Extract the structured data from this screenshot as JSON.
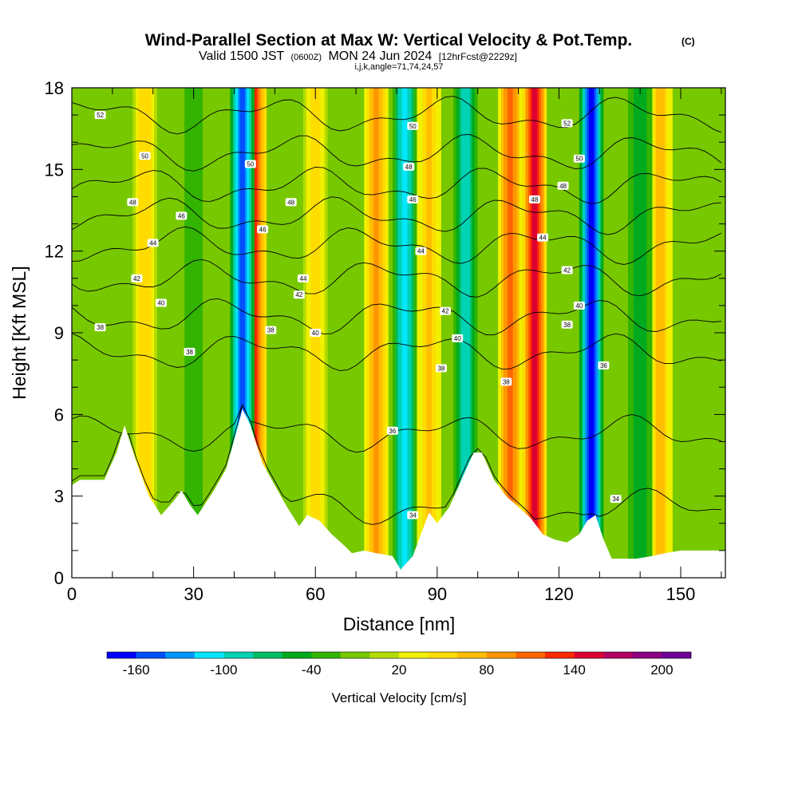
{
  "header": {
    "title": "Wind-Parallel Section at Max W: Vertical Velocity & Pot.Temp.",
    "copyright": "(C)",
    "valid_prefix": "Valid 1500 JST",
    "valid_utc": "(0600Z)",
    "valid_date": "MON 24 Jun 2024",
    "forecast": "[12hrFcst@2229z]",
    "indices": "i,j,k,angle=71,74,24,57"
  },
  "chart_data": {
    "type": "heatmap",
    "xlabel": "Distance [nm]",
    "ylabel": "Height [Kft MSL]",
    "xlim": [
      0,
      161
    ],
    "ylim": [
      0,
      18
    ],
    "x_ticks": [
      0,
      30,
      60,
      90,
      120,
      150
    ],
    "y_ticks": [
      0,
      3,
      6,
      9,
      12,
      15,
      18
    ],
    "colorbar": {
      "label": "Vertical Velocity [cm/s]",
      "tick_labels": [
        "-160",
        "-100",
        "-40",
        "20",
        "80",
        "140",
        "200"
      ],
      "bins": [
        -180,
        -160,
        -140,
        -120,
        -100,
        -80,
        -60,
        -40,
        -20,
        0,
        20,
        40,
        60,
        80,
        100,
        120,
        140,
        160,
        180,
        200,
        220
      ],
      "colors": [
        "#0000ff",
        "#0050ff",
        "#0096ff",
        "#00e6ff",
        "#00d2b4",
        "#00be64",
        "#00aa1e",
        "#32b400",
        "#78c800",
        "#b4dc00",
        "#f0f000",
        "#ffdc00",
        "#ffbe00",
        "#ff9600",
        "#ff6400",
        "#ff2800",
        "#dc0032",
        "#b40064",
        "#8c0082",
        "#6e0096"
      ]
    },
    "updraft_columns": [
      {
        "x": 18,
        "w": 55
      },
      {
        "x": 45,
        "w": 130
      },
      {
        "x": 60,
        "w": 50
      },
      {
        "x": 75,
        "w": 85
      },
      {
        "x": 88,
        "w": 60
      },
      {
        "x": 108,
        "w": 110
      },
      {
        "x": 114,
        "w": 150
      },
      {
        "x": 145,
        "w": 70
      }
    ],
    "downdraft_columns": [
      {
        "x": 30,
        "w": -40
      },
      {
        "x": 42,
        "w": -150
      },
      {
        "x": 82,
        "w": -110
      },
      {
        "x": 97,
        "w": -100
      },
      {
        "x": 128,
        "w": -170
      },
      {
        "x": 140,
        "w": -60
      }
    ],
    "terrain_kft": [
      [
        0,
        3.4
      ],
      [
        2,
        3.6
      ],
      [
        8,
        3.6
      ],
      [
        11,
        4.6
      ],
      [
        13,
        5.6
      ],
      [
        16,
        4.2
      ],
      [
        19,
        3.0
      ],
      [
        22,
        2.3
      ],
      [
        25,
        2.8
      ],
      [
        27,
        3.2
      ],
      [
        29,
        2.7
      ],
      [
        31,
        2.3
      ],
      [
        35,
        3.2
      ],
      [
        38,
        4.0
      ],
      [
        41,
        5.6
      ],
      [
        42,
        6.2
      ],
      [
        44,
        5.6
      ],
      [
        47,
        4.2
      ],
      [
        50,
        3.4
      ],
      [
        53,
        2.6
      ],
      [
        56,
        1.9
      ],
      [
        58,
        2.3
      ],
      [
        61,
        2.1
      ],
      [
        64,
        1.6
      ],
      [
        67,
        1.2
      ],
      [
        69,
        0.9
      ],
      [
        72,
        1.0
      ],
      [
        75,
        0.9
      ],
      [
        79,
        0.8
      ],
      [
        81,
        0.3
      ],
      [
        84,
        0.8
      ],
      [
        86,
        1.6
      ],
      [
        88,
        2.4
      ],
      [
        90,
        2.0
      ],
      [
        93,
        2.6
      ],
      [
        96,
        3.6
      ],
      [
        99,
        4.6
      ],
      [
        101,
        4.6
      ],
      [
        104,
        3.6
      ],
      [
        107,
        3.0
      ],
      [
        110,
        2.6
      ],
      [
        113,
        2.2
      ],
      [
        116,
        1.6
      ],
      [
        119,
        1.4
      ],
      [
        122,
        1.3
      ],
      [
        125,
        1.6
      ],
      [
        127,
        2.1
      ],
      [
        129,
        2.3
      ],
      [
        131,
        1.4
      ],
      [
        133,
        0.7
      ],
      [
        139,
        0.7
      ],
      [
        143,
        0.8
      ],
      [
        146,
        0.9
      ],
      [
        150,
        1.0
      ],
      [
        156,
        1.0
      ],
      [
        161,
        1.0
      ]
    ],
    "isentropes": [
      {
        "theta": "34",
        "z": 2.6
      },
      {
        "theta": "36",
        "z": 5.3
      },
      {
        "theta": "38",
        "z": 8.3
      },
      {
        "theta": "40",
        "z": 9.6
      },
      {
        "theta": "42",
        "z": 11.0
      },
      {
        "theta": "44",
        "z": 12.2
      },
      {
        "theta": "46",
        "z": 13.3
      },
      {
        "theta": "48",
        "z": 14.4
      },
      {
        "theta": "50",
        "z": 15.6
      },
      {
        "theta": "52",
        "z": 17.0
      }
    ],
    "contour_labels": [
      {
        "text": "52",
        "x": 7,
        "y": 17.0
      },
      {
        "text": "50",
        "x": 18,
        "y": 15.5
      },
      {
        "text": "48",
        "x": 15,
        "y": 13.8
      },
      {
        "text": "46",
        "x": 27,
        "y": 13.3
      },
      {
        "text": "44",
        "x": 20,
        "y": 12.3
      },
      {
        "text": "42",
        "x": 16,
        "y": 11.0
      },
      {
        "text": "40",
        "x": 22,
        "y": 10.1
      },
      {
        "text": "38",
        "x": 7,
        "y": 9.2
      },
      {
        "text": "38",
        "x": 29,
        "y": 8.3
      },
      {
        "text": "50",
        "x": 44,
        "y": 15.2
      },
      {
        "text": "48",
        "x": 54,
        "y": 13.8
      },
      {
        "text": "46",
        "x": 47,
        "y": 12.8
      },
      {
        "text": "44",
        "x": 57,
        "y": 11.0
      },
      {
        "text": "42",
        "x": 56,
        "y": 10.4
      },
      {
        "text": "38",
        "x": 49,
        "y": 9.1
      },
      {
        "text": "40",
        "x": 60,
        "y": 9.0
      },
      {
        "text": "50",
        "x": 84,
        "y": 16.6
      },
      {
        "text": "48",
        "x": 83,
        "y": 15.1
      },
      {
        "text": "46",
        "x": 84,
        "y": 13.9
      },
      {
        "text": "44",
        "x": 86,
        "y": 12.0
      },
      {
        "text": "42",
        "x": 92,
        "y": 9.8
      },
      {
        "text": "40",
        "x": 95,
        "y": 8.8
      },
      {
        "text": "38",
        "x": 91,
        "y": 7.7
      },
      {
        "text": "36",
        "x": 79,
        "y": 5.4
      },
      {
        "text": "34",
        "x": 84,
        "y": 2.3
      },
      {
        "text": "38",
        "x": 107,
        "y": 7.2
      },
      {
        "text": "48",
        "x": 114,
        "y": 13.9
      },
      {
        "text": "44",
        "x": 116,
        "y": 12.5
      },
      {
        "text": "52",
        "x": 122,
        "y": 16.7
      },
      {
        "text": "50",
        "x": 125,
        "y": 15.4
      },
      {
        "text": "48",
        "x": 121,
        "y": 14.4
      },
      {
        "text": "42",
        "x": 122,
        "y": 11.3
      },
      {
        "text": "40",
        "x": 125,
        "y": 10.0
      },
      {
        "text": "38",
        "x": 122,
        "y": 9.3
      },
      {
        "text": "36",
        "x": 131,
        "y": 7.8
      },
      {
        "text": "34",
        "x": 134,
        "y": 2.9
      }
    ]
  }
}
